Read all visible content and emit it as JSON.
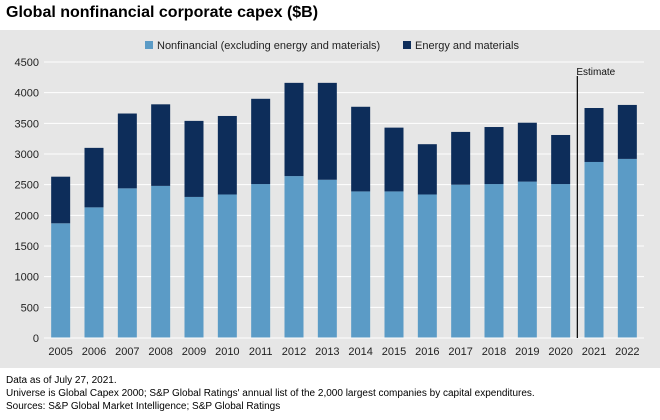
{
  "page": {
    "title": "Global nonfinancial corporate capex ($B)",
    "notes": [
      "Data as of July 27, 2021.",
      "Universe is Global Capex 2000; S&P Global Ratings' annual list of the 2,000 largest companies by capital expenditures.",
      "Sources: S&P Global Market Intelligence; S&P Global Ratings"
    ]
  },
  "colors": {
    "nonfinancial": "#5b9bc6",
    "energy": "#0d2d5a",
    "grid": "#ffffff",
    "background": "#e6e6e6",
    "estimate_line": "#000000"
  },
  "chart_data": {
    "type": "bar",
    "stacked": true,
    "title": "Global nonfinancial corporate capex ($B)",
    "categories": [
      "2005",
      "2006",
      "2007",
      "2008",
      "2009",
      "2010",
      "2011",
      "2012",
      "2013",
      "2014",
      "2015",
      "2016",
      "2017",
      "2018",
      "2019",
      "2020",
      "2021",
      "2022"
    ],
    "series": [
      {
        "name": "Nonfinancial (excluding energy and materials)",
        "color": "#5b9bc6",
        "values": [
          1870,
          2130,
          2440,
          2480,
          2300,
          2340,
          2510,
          2640,
          2580,
          2390,
          2390,
          2340,
          2500,
          2510,
          2550,
          2510,
          2870,
          2920
        ]
      },
      {
        "name": "Energy and materials",
        "color": "#0d2d5a",
        "values": [
          760,
          970,
          1220,
          1330,
          1240,
          1280,
          1390,
          1520,
          1580,
          1380,
          1040,
          820,
          860,
          930,
          960,
          800,
          880,
          880
        ]
      }
    ],
    "ylim": [
      0,
      4500
    ],
    "yticks": [
      0,
      500,
      1000,
      1500,
      2000,
      2500,
      3000,
      3500,
      4000,
      4500
    ],
    "xlabel": "",
    "ylabel": "",
    "legend_position": "top",
    "grid": true,
    "annotation": {
      "text": "Estimate",
      "after_category": "2020"
    }
  }
}
